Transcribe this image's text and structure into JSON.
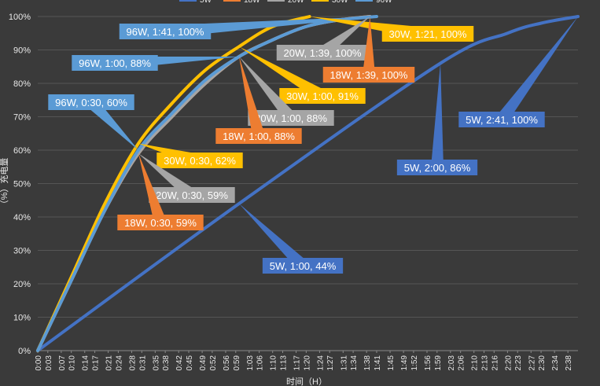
{
  "chart_data": {
    "type": "line",
    "title": "",
    "xlabel": "时间（H）",
    "ylabel": "（%）充电量",
    "ylim": [
      0,
      100
    ],
    "y_ticks": [
      "0%",
      "10%",
      "20%",
      "30%",
      "40%",
      "50%",
      "60%",
      "70%",
      "80%",
      "90%",
      "100%"
    ],
    "x_ticks": [
      "0:00",
      "0:03",
      "0:07",
      "0:10",
      "0:14",
      "0:17",
      "0:21",
      "0:24",
      "0:28",
      "0:31",
      "0:35",
      "0:38",
      "0:42",
      "0:45",
      "0:49",
      "0:52",
      "0:56",
      "0:59",
      "1:03",
      "1:06",
      "1:10",
      "1:13",
      "1:17",
      "1:20",
      "1:24",
      "1:27",
      "1:31",
      "1:34",
      "1:38",
      "1:41",
      "1:45",
      "1:49",
      "1:52",
      "1:56",
      "1:59",
      "2:03",
      "2:06",
      "2:10",
      "2:13",
      "2:16",
      "2:20",
      "2:23",
      "2:27",
      "2:30",
      "2:34",
      "2:38"
    ],
    "grid": true,
    "legend": "top",
    "series": [
      {
        "name": "5W",
        "color": "#4472c4",
        "x": [
          0,
          60,
          120,
          140,
          150,
          161
        ],
        "y": [
          0,
          44,
          86,
          95,
          98,
          100
        ]
      },
      {
        "name": "18W",
        "color": "#ed7d31",
        "x": [
          0,
          10,
          20,
          30,
          40,
          50,
          60,
          70,
          80,
          90,
          99
        ],
        "y": [
          0,
          21,
          42,
          59,
          70,
          80,
          88,
          93,
          97,
          99,
          100
        ]
      },
      {
        "name": "20W",
        "color": "#a5a5a5",
        "x": [
          0,
          10,
          20,
          30,
          40,
          50,
          60,
          70,
          80,
          90,
          99
        ],
        "y": [
          0,
          21,
          42,
          59,
          70,
          80,
          88,
          93,
          97,
          99,
          100
        ]
      },
      {
        "name": "30W",
        "color": "#ffc000",
        "x": [
          0,
          10,
          20,
          30,
          40,
          50,
          60,
          70,
          81
        ],
        "y": [
          0,
          22,
          44,
          62,
          74,
          84,
          91,
          97,
          100
        ]
      },
      {
        "name": "96W",
        "color": "#5b9bd5",
        "x": [
          0,
          10,
          20,
          30,
          40,
          50,
          60,
          70,
          80,
          90,
          101
        ],
        "y": [
          0,
          21,
          42,
          60,
          71,
          81,
          88,
          93,
          97,
          99,
          100
        ]
      }
    ],
    "annotations": [
      {
        "text": "96W, 1:41, 100%",
        "color": "#5b9bd5",
        "x": 101,
        "y": 100
      },
      {
        "text": "96W, 1:00, 88%",
        "color": "#5b9bd5",
        "x": 60,
        "y": 88
      },
      {
        "text": "96W, 0:30, 60%",
        "color": "#5b9bd5",
        "x": 30,
        "y": 60
      },
      {
        "text": "30W, 1:21, 100%",
        "color": "#ffc000",
        "x": 81,
        "y": 100
      },
      {
        "text": "30W, 1:00, 91%",
        "color": "#ffc000",
        "x": 60,
        "y": 91
      },
      {
        "text": "30W, 0:30, 62%",
        "color": "#ffc000",
        "x": 30,
        "y": 62
      },
      {
        "text": "20W, 1:39, 100%",
        "color": "#a5a5a5",
        "x": 99,
        "y": 100
      },
      {
        "text": "20W, 1:00, 88%",
        "color": "#a5a5a5",
        "x": 60,
        "y": 88
      },
      {
        "text": "20W, 0:30, 59%",
        "color": "#a5a5a5",
        "x": 30,
        "y": 59
      },
      {
        "text": "18W, 1:39, 100%",
        "color": "#ed7d31",
        "x": 99,
        "y": 100
      },
      {
        "text": "18W, 1:00, 88%",
        "color": "#ed7d31",
        "x": 60,
        "y": 88
      },
      {
        "text": "18W, 0:30, 59%",
        "color": "#ed7d31",
        "x": 30,
        "y": 59
      },
      {
        "text": "5W, 2:41, 100%",
        "color": "#4472c4",
        "x": 161,
        "y": 100
      },
      {
        "text": "5W, 2:00, 86%",
        "color": "#4472c4",
        "x": 120,
        "y": 86
      },
      {
        "text": "5W, 1:00, 44%",
        "color": "#4472c4",
        "x": 60,
        "y": 44
      }
    ]
  }
}
